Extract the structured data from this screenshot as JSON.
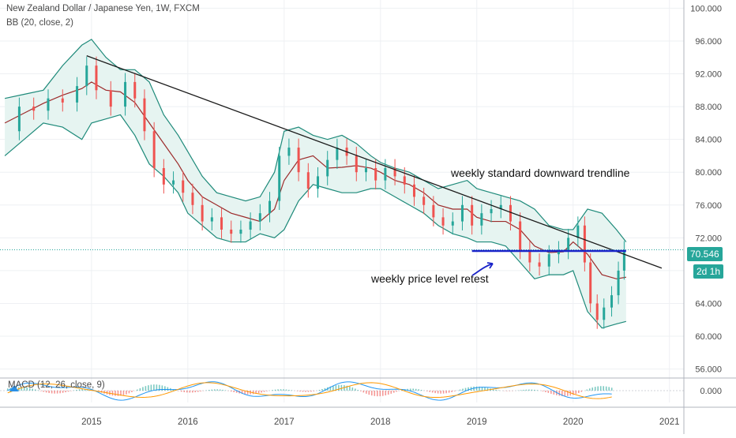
{
  "header": {
    "title": "New Zealand Dollar / Japanese Yen, 1W, FXCM",
    "indicator": "BB (20, close, 2)",
    "macd_label": "MACD (12, 26, close, 9)"
  },
  "price_axis": {
    "ticks": [
      "100.000",
      "96.000",
      "92.000",
      "88.000",
      "84.000",
      "80.000",
      "76.000",
      "72.000",
      "68.000",
      "64.000",
      "60.000",
      "56.000"
    ],
    "last_price": "70.546",
    "countdown": "2d 1h",
    "macd_tick": "0.000"
  },
  "time_axis": {
    "ticks": [
      "2015",
      "2016",
      "2017",
      "2018",
      "2019",
      "2020",
      "2021"
    ]
  },
  "annotations": {
    "trendline_text": "weekly standard downward trendline",
    "level_text": "weekly price level retest"
  },
  "colors": {
    "up": "#26a69a",
    "down": "#ef5350",
    "band": "#1e8a7a",
    "band_fill": "#e6f4f1",
    "basis": "#9c2b2b",
    "trendline": "#1a1a1a",
    "level": "#1a24c9",
    "price_tag": "#26a69a",
    "countdown_tag": "#26a69a",
    "macd_line": "#2196f3",
    "signal_line": "#ff9800"
  },
  "chart_data": {
    "type": "line",
    "title": "New Zealand Dollar / Japanese Yen, 1W, FXCM",
    "xlabel": "",
    "ylabel": "",
    "ylim": [
      55,
      101
    ],
    "xlim": [
      2014.05,
      2021.15
    ],
    "grid": true,
    "series": [
      {
        "name": "BB (20, close, 2)",
        "x": [
          2014.1,
          2014.3,
          2014.5,
          2014.7,
          2014.9,
          2015.0,
          2015.15,
          2015.3,
          2015.45,
          2015.6,
          2015.75,
          2015.9,
          2016.0,
          2016.15,
          2016.3,
          2016.45,
          2016.6,
          2016.75,
          2016.9,
          2017.0,
          2017.15,
          2017.3,
          2017.45,
          2017.6,
          2017.75,
          2017.9,
          2018.0,
          2018.15,
          2018.3,
          2018.45,
          2018.6,
          2018.75,
          2018.9,
          2019.0,
          2019.15,
          2019.3,
          2019.45,
          2019.6,
          2019.75,
          2019.9,
          2020.0,
          2020.15,
          2020.3,
          2020.45,
          2020.55
        ],
        "values": [
          86.0,
          87.2,
          88.4,
          89.4,
          90.2,
          91.0,
          90.0,
          89.8,
          88.5,
          86.0,
          83.5,
          81.0,
          79.0,
          77.0,
          76.0,
          75.0,
          74.5,
          74.0,
          75.5,
          79.0,
          81.5,
          82.0,
          80.5,
          80.6,
          80.8,
          80.5,
          80.0,
          79.0,
          78.5,
          77.5,
          76.0,
          75.5,
          75.5,
          74.5,
          74.0,
          74.0,
          73.0,
          71.0,
          70.2,
          70.3,
          71.5,
          70.0,
          67.5,
          67.0,
          67.2
        ]
      },
      {
        "name": "",
        "x": [
          2014.1,
          2014.3,
          2014.5,
          2014.7,
          2014.9,
          2015.0,
          2015.15,
          2015.3,
          2015.45,
          2015.6,
          2015.75,
          2015.9,
          2016.0,
          2016.15,
          2016.3,
          2016.45,
          2016.6,
          2016.75,
          2016.9,
          2017.0,
          2017.15,
          2017.3,
          2017.45,
          2017.6,
          2017.75,
          2017.9,
          2018.0,
          2018.15,
          2018.3,
          2018.45,
          2018.6,
          2018.75,
          2018.9,
          2019.0,
          2019.15,
          2019.3,
          2019.45,
          2019.6,
          2019.75,
          2019.9,
          2020.0,
          2020.15,
          2020.3,
          2020.45,
          2020.55
        ],
        "values": [
          89.0,
          89.5,
          90.0,
          93.0,
          95.5,
          96.2,
          94.0,
          92.5,
          92.5,
          91.0,
          87.0,
          84.5,
          82.5,
          79.5,
          77.5,
          77.0,
          76.5,
          77.0,
          80.0,
          85.0,
          85.5,
          84.5,
          84.0,
          84.5,
          83.5,
          82.0,
          81.2,
          80.5,
          80.0,
          79.0,
          78.0,
          78.5,
          79.0,
          78.0,
          77.5,
          77.0,
          76.5,
          75.5,
          73.5,
          73.0,
          73.0,
          75.5,
          75.0,
          73.0,
          71.5
        ]
      },
      {
        "name": "",
        "x": [
          2014.1,
          2014.3,
          2014.5,
          2014.7,
          2014.9,
          2015.0,
          2015.15,
          2015.3,
          2015.45,
          2015.6,
          2015.75,
          2015.9,
          2016.0,
          2016.15,
          2016.3,
          2016.45,
          2016.6,
          2016.75,
          2016.9,
          2017.0,
          2017.15,
          2017.3,
          2017.45,
          2017.6,
          2017.75,
          2017.9,
          2018.0,
          2018.15,
          2018.3,
          2018.45,
          2018.6,
          2018.75,
          2018.9,
          2019.0,
          2019.15,
          2019.3,
          2019.45,
          2019.6,
          2019.75,
          2019.9,
          2020.0,
          2020.15,
          2020.3,
          2020.45,
          2020.55
        ],
        "values": [
          82.0,
          84.0,
          86.0,
          85.5,
          84.0,
          86.0,
          86.5,
          87.0,
          84.5,
          81.0,
          79.5,
          77.5,
          75.0,
          73.5,
          72.0,
          71.5,
          71.5,
          72.5,
          72.0,
          73.0,
          76.5,
          78.5,
          78.0,
          77.5,
          77.5,
          78.0,
          78.0,
          77.0,
          76.0,
          75.0,
          73.5,
          72.5,
          72.0,
          71.5,
          71.5,
          71.0,
          69.0,
          67.0,
          67.5,
          67.5,
          68.0,
          63.0,
          61.0,
          61.5,
          61.8
        ]
      },
      {
        "name": "Close",
        "x": [
          2014.1,
          2014.25,
          2014.4,
          2014.55,
          2014.7,
          2014.85,
          2014.95,
          2015.05,
          2015.2,
          2015.35,
          2015.45,
          2015.55,
          2015.65,
          2015.75,
          2015.85,
          2015.95,
          2016.05,
          2016.15,
          2016.25,
          2016.35,
          2016.45,
          2016.55,
          2016.65,
          2016.75,
          2016.85,
          2016.95,
          2017.05,
          2017.15,
          2017.25,
          2017.35,
          2017.45,
          2017.55,
          2017.65,
          2017.75,
          2017.85,
          2017.95,
          2018.05,
          2018.15,
          2018.25,
          2018.35,
          2018.45,
          2018.55,
          2018.65,
          2018.75,
          2018.85,
          2018.95,
          2019.05,
          2019.15,
          2019.25,
          2019.35,
          2019.45,
          2019.55,
          2019.65,
          2019.75,
          2019.85,
          2019.95,
          2020.05,
          2020.12,
          2020.18,
          2020.25,
          2020.32,
          2020.4,
          2020.47,
          2020.53
        ],
        "values": [
          85.0,
          88.0,
          87.5,
          89.0,
          88.5,
          90.5,
          93.0,
          90.0,
          88.0,
          91.0,
          89.0,
          85.0,
          80.5,
          78.5,
          79.0,
          77.5,
          76.0,
          74.0,
          74.5,
          73.0,
          72.5,
          73.0,
          74.0,
          75.0,
          76.5,
          82.0,
          83.0,
          80.0,
          78.0,
          79.5,
          81.5,
          83.0,
          82.0,
          80.0,
          80.5,
          79.0,
          80.5,
          79.5,
          78.5,
          77.0,
          76.0,
          74.5,
          73.5,
          74.0,
          76.0,
          73.5,
          75.0,
          75.5,
          76.0,
          74.0,
          70.5,
          69.0,
          68.5,
          70.0,
          70.5,
          72.0,
          73.5,
          69.0,
          64.0,
          62.0,
          63.5,
          65.0,
          68.0,
          70.5
        ]
      }
    ],
    "candle_ranges": {
      "high": 96.0,
      "low": 59.5
    },
    "trendline": {
      "x": [
        2014.95,
        2020.92
      ],
      "y": [
        94.2,
        68.3
      ]
    },
    "horizontal_level": {
      "x": [
        2018.95,
        2020.55
      ],
      "y": 70.4
    },
    "macd": {
      "ylim": [
        -0.8,
        0.8
      ],
      "ticks": [
        0.0
      ]
    }
  }
}
